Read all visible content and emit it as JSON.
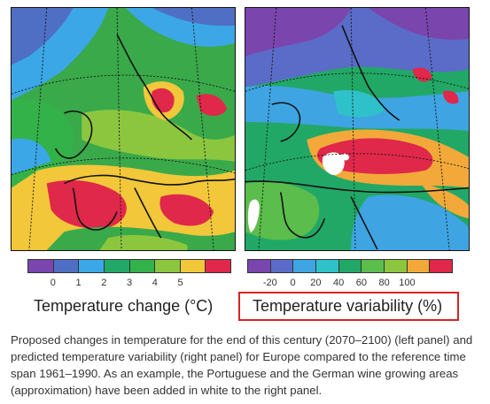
{
  "left_panel": {
    "colorbar": {
      "colors": [
        "#7a45ad",
        "#4f6fc4",
        "#3ba7e6",
        "#22a866",
        "#33b24a",
        "#8cc63f",
        "#f2c73a",
        "#e0284a"
      ],
      "ticks": [
        "0",
        "1",
        "2",
        "3",
        "4",
        "5"
      ]
    },
    "legend_title": "Temperature change (°C)"
  },
  "right_panel": {
    "colorbar": {
      "colors": [
        "#7a45ad",
        "#5a6cc8",
        "#3fa4e2",
        "#2fc1c9",
        "#22a866",
        "#5bbd4b",
        "#8cc63f",
        "#f2a93a",
        "#e0284a"
      ],
      "ticks": [
        "-20",
        "0",
        "20",
        "40",
        "60",
        "80",
        "100"
      ]
    },
    "legend_title": "Temperature variability (%)"
  },
  "caption": "Proposed changes in temperature for the end of this century (2070–2100) (left panel) and predicted temperature variability (right panel) for Europe compared to the reference time span 1961–1990. As an example, the Portuguese and the German wine growing areas (approximation) have been added in white to the right panel."
}
